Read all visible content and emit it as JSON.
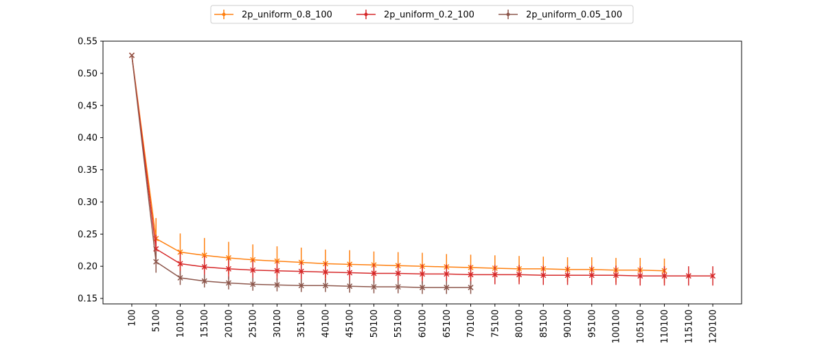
{
  "chart_data": {
    "type": "line",
    "categories": [
      "100",
      "5100",
      "10100",
      "15100",
      "20100",
      "25100",
      "30100",
      "35100",
      "40100",
      "45100",
      "50100",
      "55100",
      "60100",
      "65100",
      "70100",
      "75100",
      "80100",
      "85100",
      "90100",
      "95100",
      "100100",
      "105100",
      "110100",
      "115100",
      "120100"
    ],
    "ylim": [
      0.1415,
      0.55
    ],
    "yticks": [
      0.15,
      {
        "value": 0.2,
        "label": "0.20"
      },
      0.25,
      {
        "value": 0.3,
        "label": "0.30"
      },
      0.35,
      {
        "value": 0.4,
        "label": "0.40"
      },
      0.45,
      {
        "value": 0.5,
        "label": "0.50"
      },
      0.55
    ],
    "legend": "upper center",
    "series": [
      {
        "name": "2p_uniform_0.8_100",
        "color": "#ff7f0e",
        "values": [
          0.528,
          0.243,
          0.222,
          0.217,
          0.213,
          0.21,
          0.208,
          0.206,
          0.204,
          0.203,
          0.202,
          0.201,
          0.2,
          0.199,
          0.198,
          0.197,
          0.196,
          0.196,
          0.195,
          0.195,
          0.194,
          0.194,
          0.193,
          null,
          null
        ],
        "errors": [
          0.001,
          0.032,
          0.029,
          0.027,
          0.025,
          0.024,
          0.023,
          0.023,
          0.022,
          0.022,
          0.021,
          0.021,
          0.021,
          0.02,
          0.02,
          0.02,
          0.02,
          0.019,
          0.019,
          0.019,
          0.019,
          0.019,
          0.019,
          null,
          null
        ]
      },
      {
        "name": "2p_uniform_0.2_100",
        "color": "#d62728",
        "values": [
          0.528,
          0.227,
          0.204,
          0.199,
          0.196,
          0.194,
          0.193,
          0.192,
          0.191,
          0.19,
          0.189,
          0.189,
          0.188,
          0.188,
          0.187,
          0.187,
          0.187,
          0.186,
          0.186,
          0.186,
          0.186,
          0.185,
          0.185,
          0.185,
          0.185
        ],
        "errors": [
          0.001,
          0.022,
          0.018,
          0.017,
          0.016,
          0.016,
          0.015,
          0.015,
          0.015,
          0.015,
          0.015,
          0.015,
          0.015,
          0.015,
          0.015,
          0.015,
          0.015,
          0.015,
          0.015,
          0.015,
          0.015,
          0.015,
          0.015,
          0.015,
          0.015
        ]
      },
      {
        "name": "2p_uniform_0.05_100",
        "color": "#8c564b",
        "values": [
          0.528,
          0.207,
          0.182,
          0.177,
          0.174,
          0.172,
          0.171,
          0.17,
          0.17,
          0.169,
          0.168,
          0.168,
          0.167,
          0.167,
          0.167,
          null,
          null,
          null,
          null,
          null,
          null,
          null,
          null,
          null,
          null
        ],
        "errors": [
          0.001,
          0.017,
          0.011,
          0.01,
          0.01,
          0.01,
          0.01,
          0.01,
          0.01,
          0.01,
          0.01,
          0.01,
          0.01,
          0.01,
          0.01,
          null,
          null,
          null,
          null,
          null,
          null,
          null,
          null,
          null,
          null
        ]
      }
    ]
  }
}
